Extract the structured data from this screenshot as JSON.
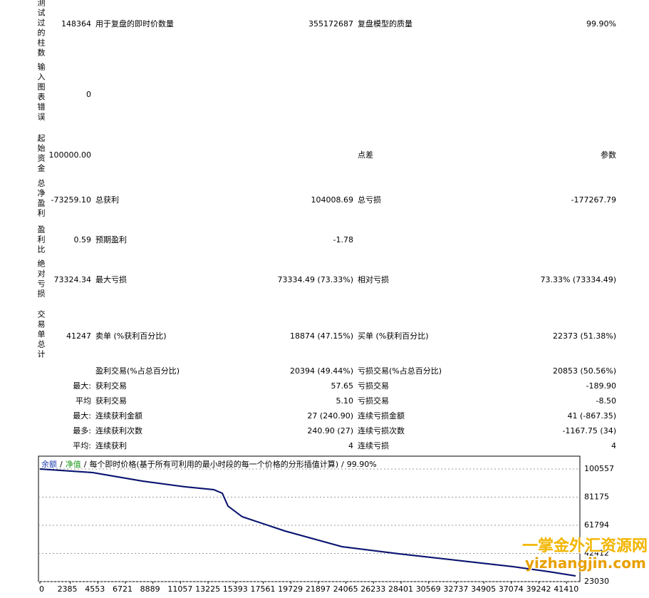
{
  "report": {
    "rows": [
      {
        "label": "测试过的柱数",
        "value": "148364",
        "cells": [
          {
            "name": "用于复盘的即时价数量",
            "value": "355172687"
          },
          {
            "name": "复盘模型的质量",
            "value": "99.90%"
          }
        ]
      },
      {
        "label": "输入图表错误",
        "value": "0",
        "cells": []
      },
      {
        "label": "起始资金",
        "value": "100000.00",
        "cells": [
          {
            "name": null,
            "value": null
          },
          {
            "name": "点差",
            "value": "参数"
          }
        ]
      },
      {
        "label": "总净盈利",
        "value": "-73259.10",
        "cells": [
          {
            "name": "总获利",
            "value": "104008.69"
          },
          {
            "name": "总亏损",
            "value": "-177267.79"
          }
        ]
      },
      {
        "label": "盈利比",
        "value": "0.59",
        "cells": [
          {
            "name": "预期盈利",
            "value": "-1.78"
          }
        ]
      },
      {
        "label": "绝对亏损",
        "value": "73324.34",
        "cells": [
          {
            "name": "最大亏损",
            "value": "73334.49 (73.33%)"
          },
          {
            "name": "相对亏损",
            "value": "73.33% (73334.49)"
          }
        ]
      },
      {
        "label": "交易单总计",
        "value": "41247",
        "cells": [
          {
            "name": "卖单 (%获利百分比)",
            "value": "18874 (47.15%)"
          },
          {
            "name": "买单 (%获利百分比)",
            "value": "22373 (51.38%)"
          }
        ]
      },
      {
        "prefix": null,
        "cells": [
          {
            "name": "盈利交易(%占总百分比)",
            "value": "20394 (49.44%)"
          },
          {
            "name": "亏损交易(%占总百分比)",
            "value": "20853 (50.56%)"
          }
        ]
      },
      {
        "prefix": "最大:",
        "cells": [
          {
            "name": "获利交易",
            "value": "57.65"
          },
          {
            "name": "亏损交易",
            "value": "-189.90"
          }
        ]
      },
      {
        "prefix": "平均",
        "cells": [
          {
            "name": "获利交易",
            "value": "5.10"
          },
          {
            "name": "亏损交易",
            "value": "-8.50"
          }
        ]
      },
      {
        "prefix": "最大:",
        "cells": [
          {
            "name": "连续获利金额",
            "value": "27 (240.90)"
          },
          {
            "name": "连续亏损金额",
            "value": "41 (-867.35)"
          }
        ]
      },
      {
        "prefix": "最多:",
        "cells": [
          {
            "name": "连续获利次数",
            "value": "240.90 (27)"
          },
          {
            "name": "连续亏损次数",
            "value": "-1167.75 (34)"
          }
        ]
      },
      {
        "prefix": "平均:",
        "cells": [
          {
            "name": "连续获利",
            "value": "4"
          },
          {
            "name": "连续亏损",
            "value": "4"
          }
        ]
      }
    ]
  },
  "chart_data": {
    "type": "line",
    "separator": "/",
    "model": "每个即时价格(基于所有可利用的最小时段的每一个价格的分形插值计算)",
    "quality": "99.90%",
    "x": [
      0,
      4146,
      8067,
      11429,
      13669,
      14342,
      14790,
      15910,
      19271,
      23753,
      28235,
      32717,
      37199,
      40000,
      42129
    ],
    "series": [
      {
        "name": "余额",
        "color": "#10107a",
        "legend_color": "#1f3fb0",
        "values": [
          100557,
          98104,
          92216,
          88290,
          86327,
          83875,
          75043,
          67683,
          57870,
          47076,
          42169,
          37753,
          33337,
          29902,
          26958
        ]
      },
      {
        "name": "净值",
        "color": "#1a9a1a",
        "legend_color": "#1a9a1a",
        "values": [
          100557,
          98104,
          92216,
          88290,
          86327,
          83875,
          75043,
          67683,
          57870,
          47076,
          42169,
          37753,
          33337,
          29902,
          26958
        ]
      }
    ],
    "xlim": [
      0,
      42350
    ],
    "ylim": [
      23030,
      109390
    ],
    "xticks": [
      0,
      2385,
      4553,
      6721,
      8889,
      11057,
      13225,
      15393,
      17561,
      19729,
      21897,
      24065,
      26233,
      28401,
      30569,
      32737,
      34905,
      37074,
      39242,
      41410
    ],
    "yticks": [
      100557,
      81175,
      61794,
      42412,
      23030
    ],
    "grid": true
  },
  "watermark": {
    "name": "一掌金外汇资源网",
    "url": "yizhangjin.com"
  }
}
